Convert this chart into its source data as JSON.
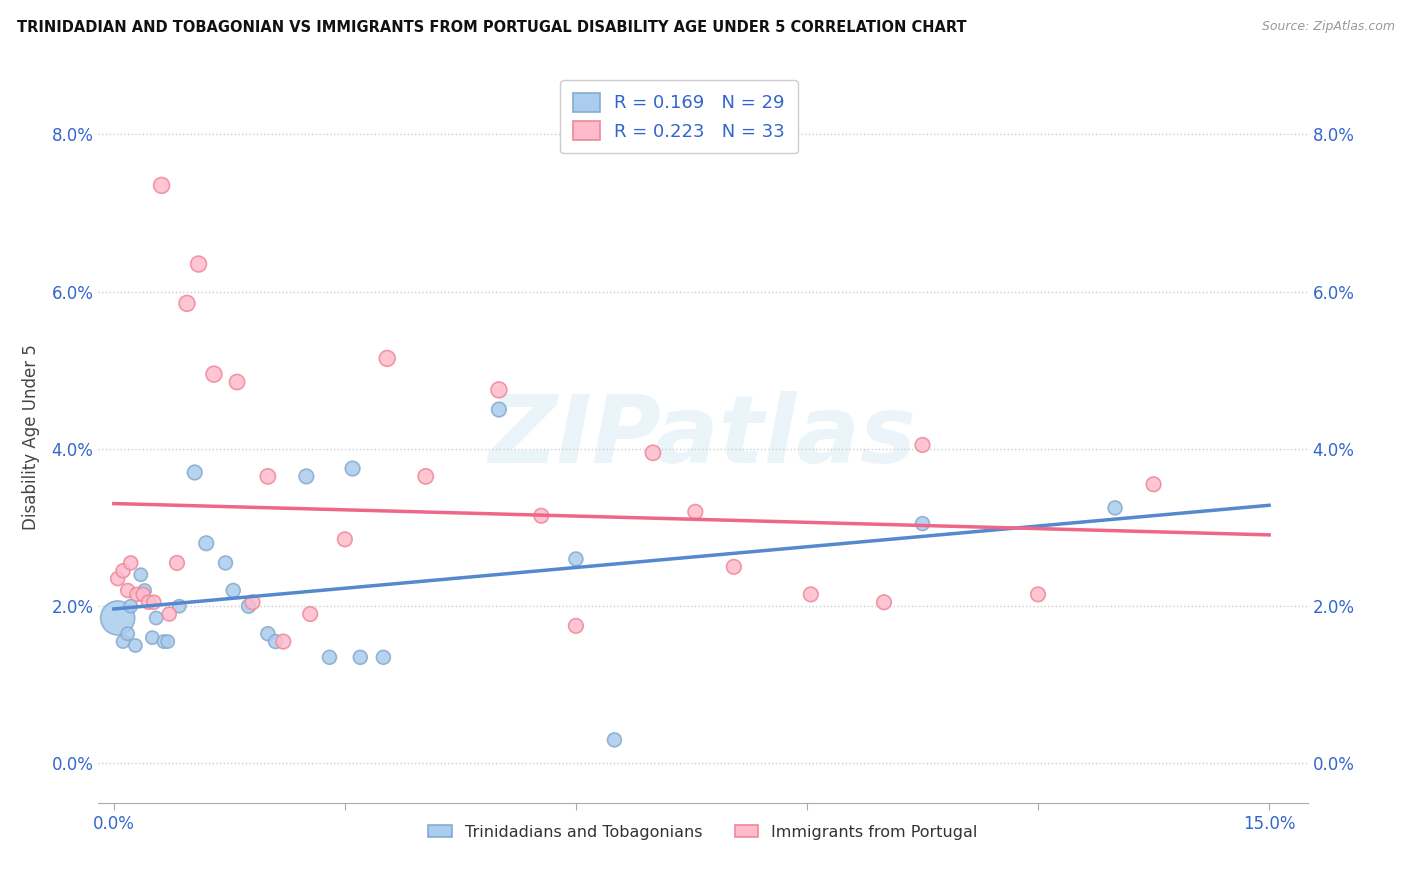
{
  "title": "TRINIDADIAN AND TOBAGONIAN VS IMMIGRANTS FROM PORTUGAL DISABILITY AGE UNDER 5 CORRELATION CHART",
  "source": "Source: ZipAtlas.com",
  "xlim": [
    -0.2,
    15.5
  ],
  "ylim": [
    -0.5,
    8.8
  ],
  "xtick_vals": [
    0.0,
    3.0,
    6.0,
    9.0,
    12.0,
    15.0
  ],
  "xtick_labels_show": [
    "0.0%",
    "",
    "",
    "",
    "",
    "15.0%"
  ],
  "ytick_vals": [
    0.0,
    2.0,
    4.0,
    6.0,
    8.0
  ],
  "ytick_labels": [
    "0.0%",
    "2.0%",
    "4.0%",
    "6.0%",
    "8.0%"
  ],
  "blue_scatter_color": "#AACCEE",
  "blue_edge_color": "#88AACC",
  "pink_scatter_color": "#FFBBCC",
  "pink_edge_color": "#EE8899",
  "blue_line_color": "#5588CC",
  "pink_line_color": "#EE6688",
  "blue_R": 0.169,
  "blue_N": 29,
  "pink_R": 0.223,
  "pink_N": 33,
  "blue_points": [
    [
      0.05,
      1.85,
      600
    ],
    [
      0.12,
      1.55,
      90
    ],
    [
      0.18,
      1.65,
      90
    ],
    [
      0.22,
      2.0,
      90
    ],
    [
      0.28,
      1.5,
      90
    ],
    [
      0.35,
      2.4,
      90
    ],
    [
      0.4,
      2.2,
      90
    ],
    [
      0.5,
      1.6,
      90
    ],
    [
      0.55,
      1.85,
      90
    ],
    [
      0.65,
      1.55,
      90
    ],
    [
      0.7,
      1.55,
      90
    ],
    [
      0.85,
      2.0,
      90
    ],
    [
      1.05,
      3.7,
      110
    ],
    [
      1.2,
      2.8,
      110
    ],
    [
      1.45,
      2.55,
      100
    ],
    [
      1.55,
      2.2,
      100
    ],
    [
      1.75,
      2.0,
      100
    ],
    [
      2.0,
      1.65,
      100
    ],
    [
      2.1,
      1.55,
      100
    ],
    [
      2.5,
      3.65,
      110
    ],
    [
      2.8,
      1.35,
      100
    ],
    [
      3.1,
      3.75,
      110
    ],
    [
      3.2,
      1.35,
      100
    ],
    [
      3.5,
      1.35,
      100
    ],
    [
      5.0,
      4.5,
      110
    ],
    [
      6.0,
      2.6,
      100
    ],
    [
      6.5,
      0.3,
      100
    ],
    [
      10.5,
      3.05,
      100
    ],
    [
      13.0,
      3.25,
      100
    ]
  ],
  "pink_points": [
    [
      0.05,
      2.35,
      100
    ],
    [
      0.12,
      2.45,
      100
    ],
    [
      0.18,
      2.2,
      100
    ],
    [
      0.22,
      2.55,
      100
    ],
    [
      0.3,
      2.15,
      100
    ],
    [
      0.38,
      2.15,
      100
    ],
    [
      0.45,
      2.05,
      100
    ],
    [
      0.52,
      2.05,
      100
    ],
    [
      0.62,
      7.35,
      130
    ],
    [
      0.72,
      1.9,
      100
    ],
    [
      0.82,
      2.55,
      110
    ],
    [
      0.95,
      5.85,
      130
    ],
    [
      1.1,
      6.35,
      130
    ],
    [
      1.3,
      4.95,
      130
    ],
    [
      1.6,
      4.85,
      120
    ],
    [
      1.8,
      2.05,
      110
    ],
    [
      2.0,
      3.65,
      120
    ],
    [
      2.2,
      1.55,
      110
    ],
    [
      2.55,
      1.9,
      110
    ],
    [
      3.0,
      2.85,
      110
    ],
    [
      3.55,
      5.15,
      130
    ],
    [
      4.05,
      3.65,
      120
    ],
    [
      5.0,
      4.75,
      130
    ],
    [
      5.55,
      3.15,
      110
    ],
    [
      6.0,
      1.75,
      110
    ],
    [
      7.0,
      3.95,
      120
    ],
    [
      7.55,
      3.2,
      110
    ],
    [
      8.05,
      2.5,
      110
    ],
    [
      9.05,
      2.15,
      110
    ],
    [
      10.0,
      2.05,
      110
    ],
    [
      10.5,
      4.05,
      110
    ],
    [
      12.0,
      2.15,
      110
    ],
    [
      13.5,
      3.55,
      110
    ]
  ],
  "watermark_text": "ZIPatlas",
  "legend_label_blue": "Trinidadians and Tobagonians",
  "legend_label_pink": "Immigrants from Portugal"
}
